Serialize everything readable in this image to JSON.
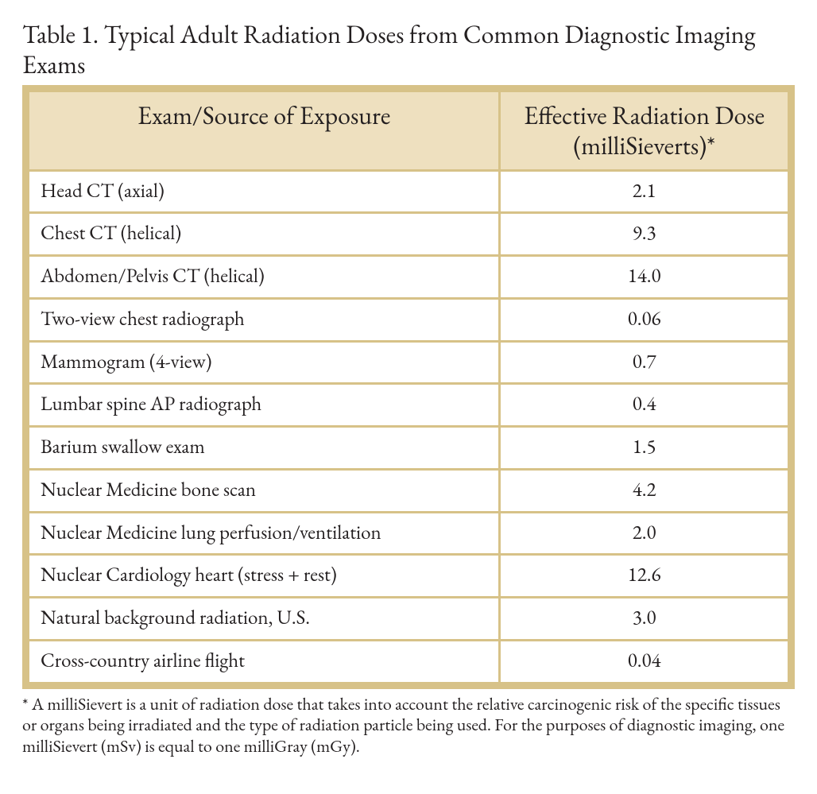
{
  "title": "Table 1. Typical Adult Radiation Doses from Common Diagnostic Imaging Exams",
  "columns": {
    "exam": "Exam/Source of Exposure",
    "dose": "Effective Radiation Dose (milliSieverts)*"
  },
  "rows": [
    {
      "exam": "Head CT (axial)",
      "dose": "2.1"
    },
    {
      "exam": "Chest CT (helical)",
      "dose": "9.3"
    },
    {
      "exam": "Abdomen/Pelvis CT (helical)",
      "dose": "14.0"
    },
    {
      "exam": "Two-view chest radiograph",
      "dose": "0.06"
    },
    {
      "exam": "Mammogram (4-view)",
      "dose": "0.7"
    },
    {
      "exam": "Lumbar spine AP radiograph",
      "dose": "0.4"
    },
    {
      "exam": "Barium swallow exam",
      "dose": "1.5"
    },
    {
      "exam": "Nuclear Medicine bone scan",
      "dose": "4.2"
    },
    {
      "exam": "Nuclear Medicine lung perfusion/ventilation",
      "dose": "2.0"
    },
    {
      "exam": "Nuclear Cardiology heart (stress + rest)",
      "dose": "12.6"
    },
    {
      "exam": "Natural background radiation, U.S.",
      "dose": "3.0"
    },
    {
      "exam": "Cross-country airline flight",
      "dose": "0.04"
    }
  ],
  "footnote": "* A milliSievert is a unit of radiation dose that takes into account the relative carcinogenic risk of the specific tissues or organs being irradiated and the type of radiation particle being used. For the purposes of diagnostic imaging, one milliSievert (mSv) is equal to one milliGray (mGy).",
  "style": {
    "border_color": "#d7c288",
    "header_bg": "#eee0bf",
    "text_color": "#231f20",
    "background_color": "#ffffff",
    "title_fontsize": 32,
    "header_fontsize": 32,
    "cell_fontsize": 25,
    "footnote_fontsize": 22,
    "outer_border_width": 6,
    "inner_border_width": 3,
    "col_widths_pct": [
      62,
      38
    ],
    "font_family": "Garamond, Georgia, serif"
  }
}
